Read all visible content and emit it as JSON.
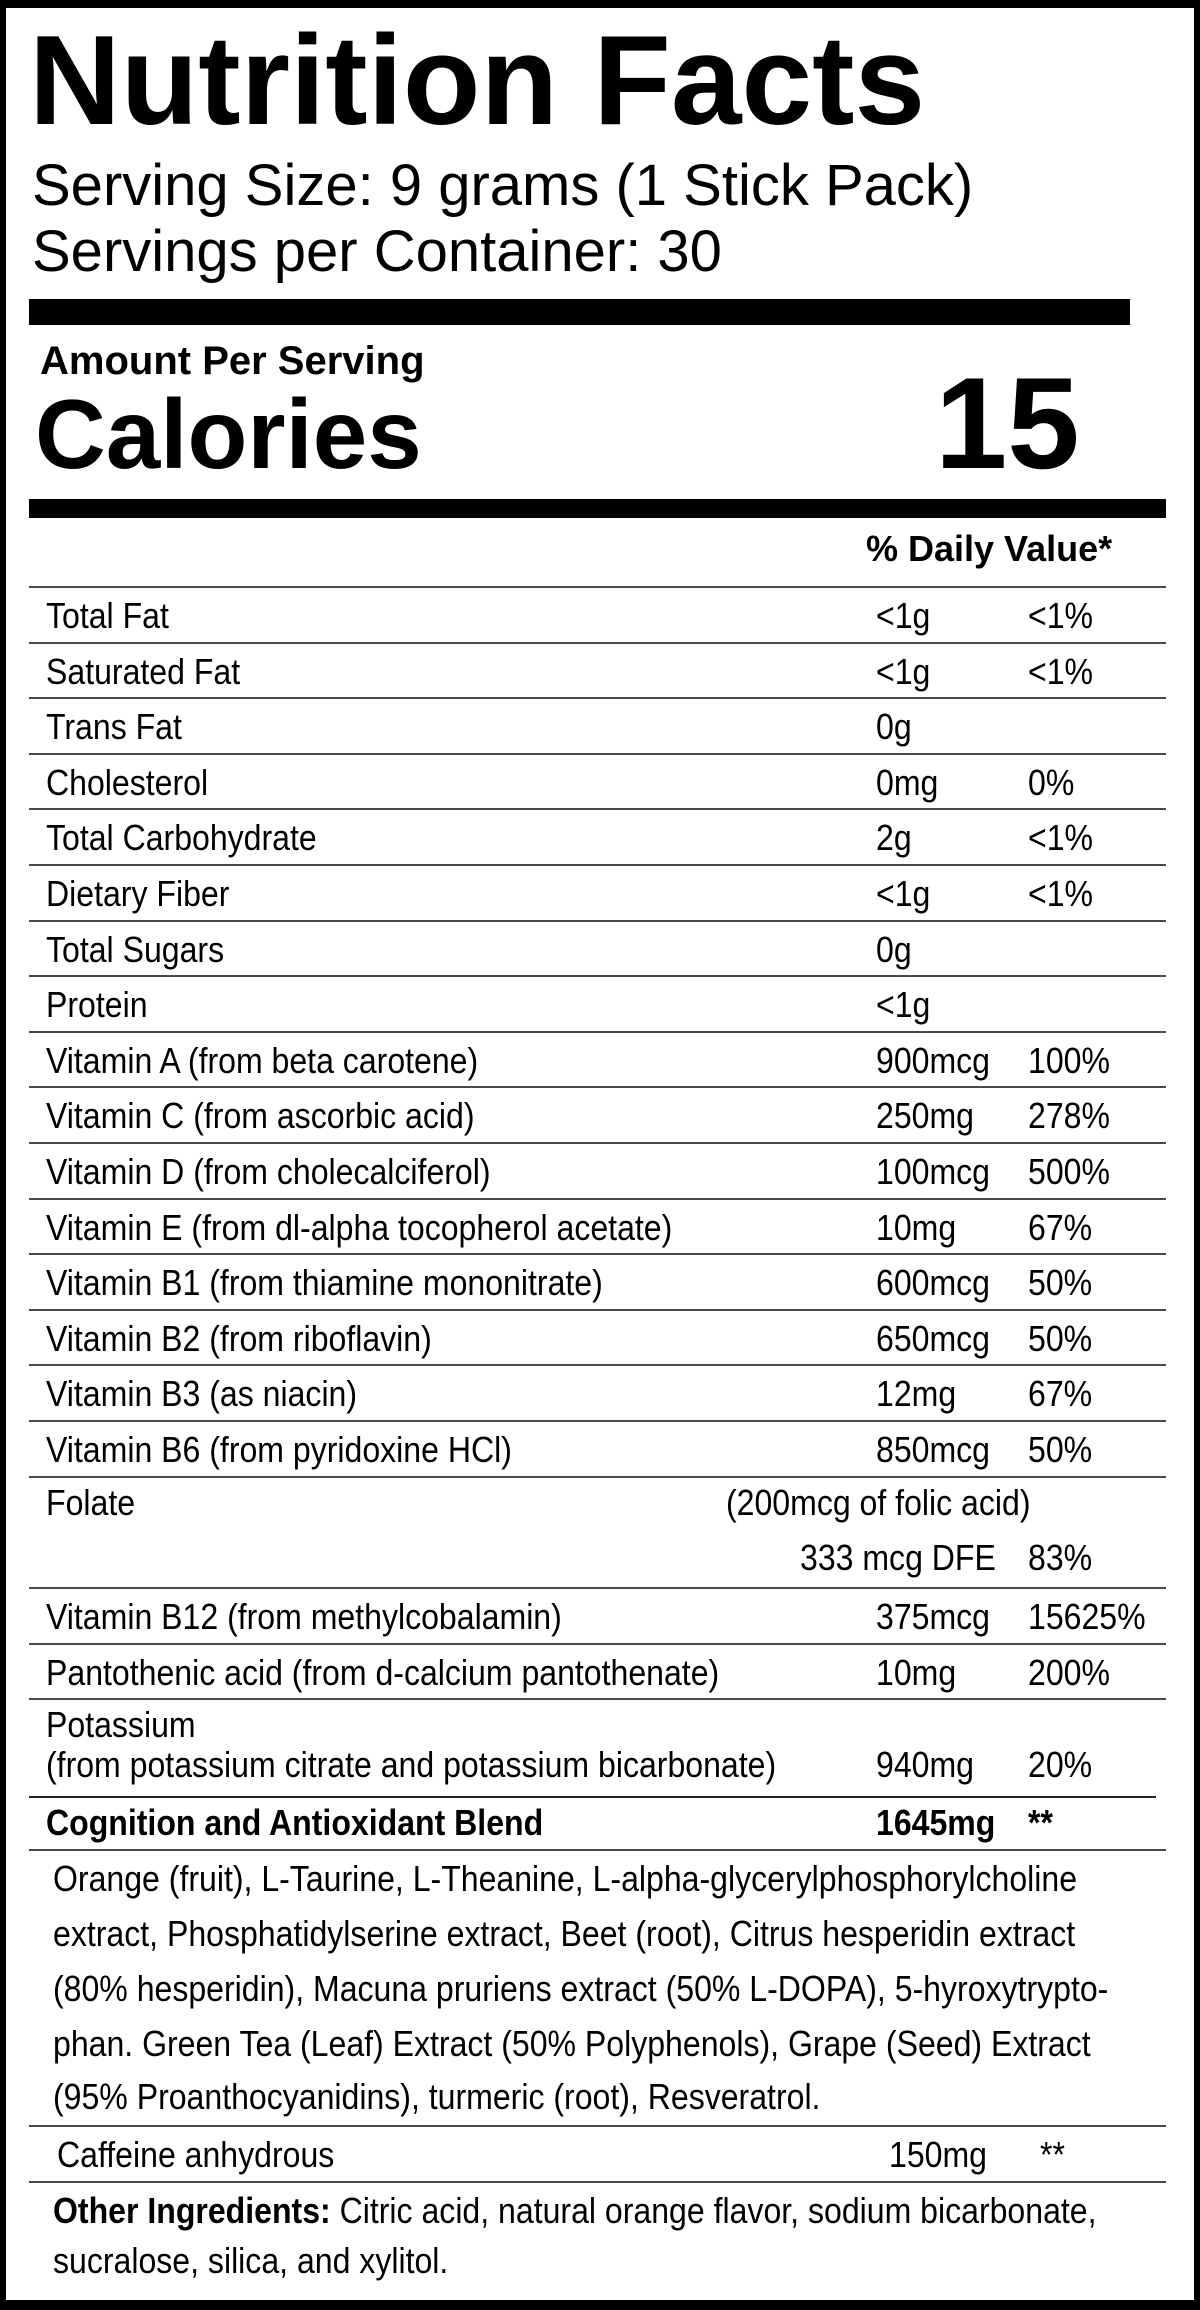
{
  "header": {
    "title": "Nutrition Facts",
    "serving_size": "Serving Size: 9 grams (1 Stick Pack)",
    "servings_per_container": "Servings per Container: 30"
  },
  "calories": {
    "amount_label": "Amount Per Serving",
    "label": "Calories",
    "value": "15"
  },
  "daily_value_header": "% Daily Value*",
  "nutrients": [
    {
      "name": "Total Fat",
      "amount": "<1g",
      "dv": "<1%"
    },
    {
      "name": "Saturated Fat",
      "amount": "<1g",
      "dv": "<1%"
    },
    {
      "name": "Trans Fat",
      "amount": "0g",
      "dv": ""
    },
    {
      "name": "Cholesterol",
      "amount": "0mg",
      "dv": "0%"
    },
    {
      "name": "Total Carbohydrate",
      "amount": "2g",
      "dv": "<1%"
    },
    {
      "name": "Dietary Fiber",
      "amount": "<1g",
      "dv": "<1%"
    },
    {
      "name": "Total Sugars",
      "amount": "0g",
      "dv": ""
    },
    {
      "name": "Protein",
      "amount": "<1g",
      "dv": ""
    },
    {
      "name": "Vitamin A (from beta carotene)",
      "amount": "900mcg",
      "dv": "100%"
    },
    {
      "name": "Vitamin C (from ascorbic acid)",
      "amount": "250mg",
      "dv": "278%"
    },
    {
      "name": "Vitamin D (from cholecalciferol)",
      "amount": "100mcg",
      "dv": "500%"
    },
    {
      "name": "Vitamin E (from dl-alpha tocopherol acetate)",
      "amount": "10mg",
      "dv": "67%"
    },
    {
      "name": "Vitamin B1 (from thiamine mononitrate)",
      "amount": "600mcg",
      "dv": "50%"
    },
    {
      "name": "Vitamin B2 (from riboflavin)",
      "amount": "650mcg",
      "dv": "50%"
    },
    {
      "name": "Vitamin B3 (as niacin)",
      "amount": "12mg",
      "dv": "67%"
    },
    {
      "name": "Vitamin B6 (from pyridoxine HCl)",
      "amount": "850mcg",
      "dv": "50%"
    }
  ],
  "folate": {
    "name": "Folate",
    "note": "(200mcg of folic acid)",
    "amount": "333 mcg DFE",
    "dv": "83%"
  },
  "nutrients_after_folate": [
    {
      "name": "Vitamin B12 (from methylcobalamin)",
      "amount": "375mcg",
      "dv": "15625%"
    },
    {
      "name": "Pantothenic acid (from d-calcium pantothenate)",
      "amount": "10mg",
      "dv": "200%"
    }
  ],
  "potassium": {
    "name": "Potassium",
    "source": "(from potassium citrate and potassium bicarbonate)",
    "amount": "940mg",
    "dv": "20%"
  },
  "blend": {
    "name": "Cognition and Antioxidant Blend",
    "amount": "1645mg",
    "dv": "**",
    "ingredients_lines": [
      "Orange (fruit), L-Taurine, L-Theanine, L-alpha-glycerylphosphorylcholine",
      "extract, Phosphatidylserine extract, Beet (root), Citrus hesperidin extract",
      "(80% hesperidin), Macuna pruriens extract (50% L-DOPA), 5-hyroxytrypto-",
      "phan. Green Tea (Leaf) Extract (50% Polyphenols), Grape (Seed) Extract",
      "(95% Proanthocyanidins), turmeric (root), Resveratrol."
    ]
  },
  "caffeine": {
    "name": "Caffeine anhydrous",
    "amount": "150mg",
    "dv": "**"
  },
  "other_ingredients": {
    "label": "Other Ingredients:",
    "line1": " Citric acid, natural orange flavor, sodium bicarbonate,",
    "line2": "sucralose, silica, and xylitol."
  }
}
